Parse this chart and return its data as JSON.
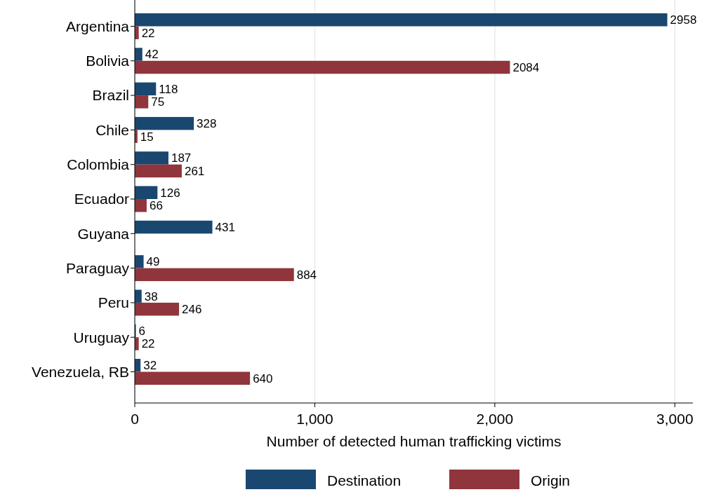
{
  "chart_data": {
    "type": "bar",
    "orientation": "horizontal",
    "xlabel": "Number of detected human trafficking victims",
    "categories": [
      "Argentina",
      "Bolivia",
      "Brazil",
      "Chile",
      "Colombia",
      "Ecuador",
      "Guyana",
      "Paraguay",
      "Peru",
      "Uruguay",
      "Venezuela, RB"
    ],
    "series": [
      {
        "name": "Destination",
        "color": "#1a476f",
        "values": [
          2958,
          42,
          118,
          328,
          187,
          126,
          431,
          49,
          38,
          6,
          32
        ]
      },
      {
        "name": "Origin",
        "color": "#90353b",
        "values": [
          22,
          2084,
          75,
          15,
          261,
          66,
          null,
          884,
          246,
          22,
          640
        ]
      }
    ],
    "xlim": [
      0,
      3100
    ],
    "xticks": [
      0,
      {
        "value": 1000,
        "label": "1,000"
      },
      {
        "value": 2000,
        "label": "2,000"
      },
      {
        "value": 3000,
        "label": "3,000"
      }
    ],
    "grid": "x",
    "legend": "bottom",
    "data_labels": true
  }
}
